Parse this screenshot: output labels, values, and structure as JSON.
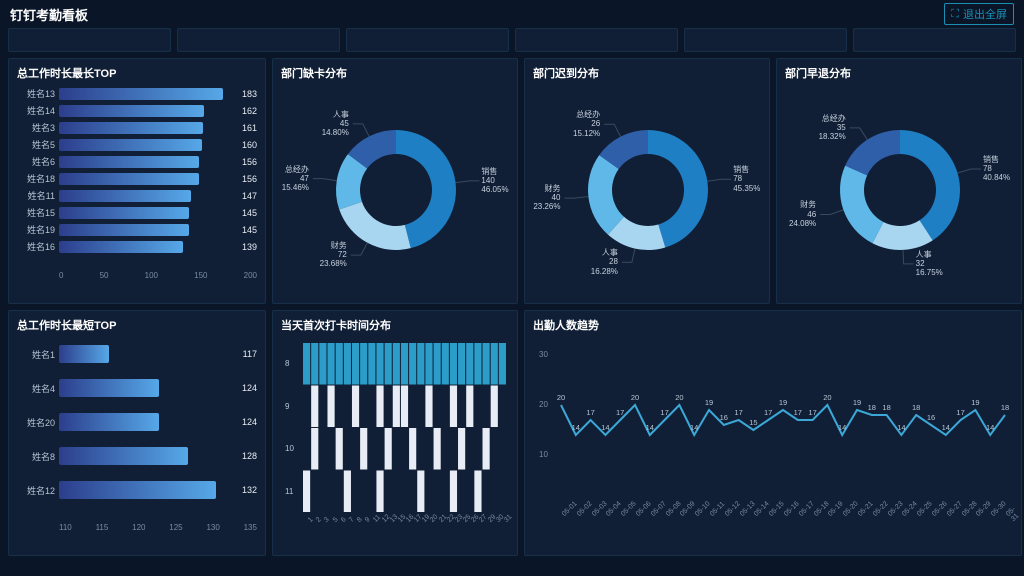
{
  "header": {
    "title": "钉钉考勤看板",
    "exit_label": "退出全屏"
  },
  "colors": {
    "bg": "#0a1628",
    "panel": "#101f35",
    "border": "#16304a",
    "text": "#b8c5d6",
    "text_muted": "#7a8ba3",
    "bar_grad_a": "#2c3e8c",
    "bar_grad_b": "#56a8e8",
    "donut": [
      "#1f7fc4",
      "#a8d5f0",
      "#5fb8e8",
      "#2e5fa8",
      "#3d88c8"
    ],
    "line": "#3ba8d8"
  },
  "top_long": {
    "title": "总工作时长最长TOP",
    "rows": [
      {
        "name": "姓名13",
        "value": 183
      },
      {
        "name": "姓名14",
        "value": 162
      },
      {
        "name": "姓名3",
        "value": 161
      },
      {
        "name": "姓名5",
        "value": 160
      },
      {
        "name": "姓名6",
        "value": 156
      },
      {
        "name": "姓名18",
        "value": 156
      },
      {
        "name": "姓名11",
        "value": 147
      },
      {
        "name": "姓名15",
        "value": 145
      },
      {
        "name": "姓名19",
        "value": 145
      },
      {
        "name": "姓名16",
        "value": 139
      }
    ],
    "xmax": 200,
    "xticks": [
      0,
      50,
      100,
      150,
      200
    ]
  },
  "top_short": {
    "title": "总工作时长最短TOP",
    "rows": [
      {
        "name": "姓名1",
        "value": 117
      },
      {
        "name": "姓名4",
        "value": 124
      },
      {
        "name": "姓名20",
        "value": 124
      },
      {
        "name": "姓名8",
        "value": 128
      },
      {
        "name": "姓名12",
        "value": 132
      }
    ],
    "xmin": 110,
    "xmax": 135,
    "xticks": [
      110,
      115,
      120,
      125,
      130,
      135
    ]
  },
  "donut_missing": {
    "title": "部门缺卡分布",
    "slices": [
      {
        "label": "销售",
        "value": 140,
        "pct": "46.05%"
      },
      {
        "label": "财务",
        "value": 72,
        "pct": "23.68%"
      },
      {
        "label": "总经办",
        "value": 47,
        "pct": "15.46%"
      },
      {
        "label": "人事",
        "value": 45,
        "pct": "14.80%"
      }
    ]
  },
  "donut_late": {
    "title": "部门迟到分布",
    "slices": [
      {
        "label": "销售",
        "value": 78,
        "pct": "45.35%"
      },
      {
        "label": "人事",
        "value": 28,
        "pct": "16.28%"
      },
      {
        "label": "财务",
        "value": 40,
        "pct": "23.26%"
      },
      {
        "label": "总经办",
        "value": 26,
        "pct": "15.12%"
      }
    ]
  },
  "donut_early": {
    "title": "部门早退分布",
    "slices": [
      {
        "label": "销售",
        "value": 78,
        "pct": "40.84%"
      },
      {
        "label": "人事",
        "value": 32,
        "pct": "16.75%"
      },
      {
        "label": "财务",
        "value": 46,
        "pct": "24.08%"
      },
      {
        "label": "总经办",
        "value": 35,
        "pct": "18.32%"
      }
    ]
  },
  "punch_dist": {
    "title": "当天首次打卡时间分布",
    "yticks": [
      8,
      9,
      10,
      11
    ],
    "xlabels": [
      "1",
      "2",
      "3",
      "5",
      "6",
      "7",
      "8",
      "9",
      "11",
      "12",
      "13",
      "15",
      "16",
      "17",
      "19",
      "20",
      "21",
      "22",
      "23",
      "25",
      "26",
      "27",
      "29",
      "30",
      "31"
    ],
    "topband_color": "#2c9cc9",
    "mark_color": "#e8edf5"
  },
  "trend": {
    "title": "出勤人数趋势",
    "ymax": 30,
    "yticks": [
      10,
      20,
      30
    ],
    "points": [
      20,
      14,
      17,
      14,
      17,
      20,
      14,
      17,
      20,
      14,
      19,
      16,
      17,
      15,
      17,
      19,
      17,
      17,
      20,
      14,
      19,
      18,
      18,
      14,
      18,
      16,
      14,
      17,
      19,
      14,
      18
    ],
    "xlabels": [
      "05-01",
      "05-02",
      "05-03",
      "05-04",
      "05-05",
      "05-06",
      "05-07",
      "05-08",
      "05-09",
      "05-10",
      "05-11",
      "05-12",
      "05-13",
      "05-14",
      "05-15",
      "05-16",
      "05-17",
      "05-18",
      "05-19",
      "05-20",
      "05-21",
      "05-22",
      "05-23",
      "05-24",
      "05-25",
      "05-26",
      "05-27",
      "05-28",
      "05-29",
      "05-30",
      "05-31"
    ]
  }
}
